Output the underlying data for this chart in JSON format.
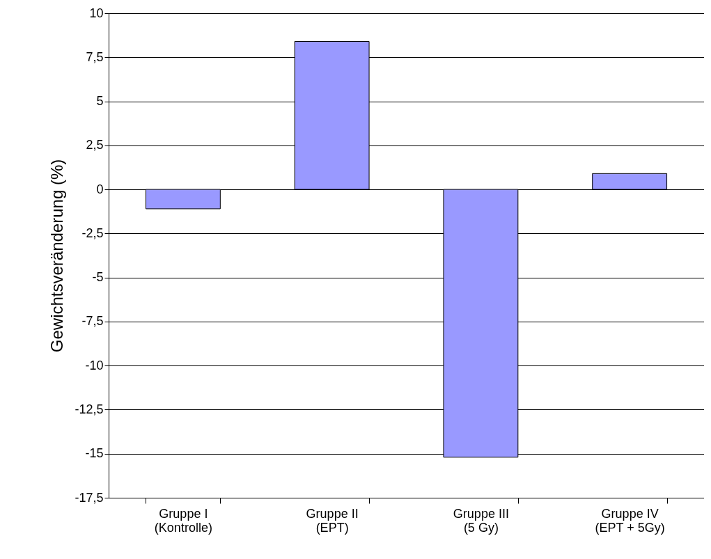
{
  "chart_data": {
    "type": "bar",
    "ylabel": "Gewichtsveränderung (%)",
    "categories": [
      "Gruppe I\n(Kontrolle)",
      "Gruppe II\n(EPT)",
      "Gruppe III\n(5 Gy)",
      "Gruppe IV\n(EPT + 5Gy)"
    ],
    "values": [
      -1.1,
      8.4,
      -15.2,
      0.9
    ],
    "color": "#9999ff",
    "ylim": [
      -17.5,
      10
    ],
    "yticks": [
      {
        "value": -17.5,
        "label": "-17,5"
      },
      -15,
      {
        "value": -12.5,
        "label": "-12,5"
      },
      -10,
      {
        "value": -7.5,
        "label": "-7,5"
      },
      -5,
      {
        "value": -2.5,
        "label": "-2,5"
      },
      0,
      {
        "value": 2.5,
        "label": "2,5"
      },
      5,
      {
        "value": 7.5,
        "label": "7,5"
      },
      10
    ],
    "grid": "y"
  }
}
